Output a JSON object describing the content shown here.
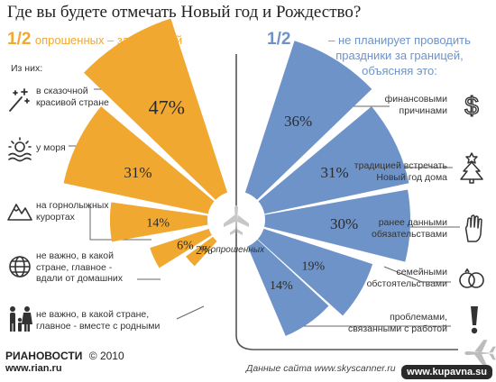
{
  "title": "Где вы будете отмечать Новый год и Рождество?",
  "left": {
    "fraction": "1/2",
    "caption": "опрошенных – за границей",
    "of_them": "Из них:"
  },
  "right": {
    "fraction": "1/2",
    "caption_lines": [
      "– не планирует проводить",
      "праздники за границей,",
      "объясняя это:"
    ]
  },
  "center_label": "% опрошенных",
  "chart_data": {
    "type": "bar",
    "orientation": "radial",
    "unit": "% опрошенных",
    "left_series": {
      "color": "#f0a830",
      "categories": [
        "в сказочной красивой стране",
        "у моря",
        "на горнолыжных курортах",
        "не важно, в какой стране, главное - вдали от домашних",
        "не важно, в какой стране, главное - вместе с родными"
      ],
      "values": [
        47,
        31,
        14,
        6,
        2
      ],
      "value_labels": [
        "47%",
        "31%",
        "14%",
        "6%",
        "2%"
      ]
    },
    "right_series": {
      "color": "#6e93c8",
      "categories": [
        "финансовыми причинами",
        "традицией встречать Новый год дома",
        "ранее данными обязательствами",
        "семейными обстоятельствами",
        "проблемами, связанными с работой"
      ],
      "values": [
        36,
        31,
        30,
        19,
        14
      ],
      "value_labels": [
        "36%",
        "31%",
        "30%",
        "19%",
        "14%"
      ]
    }
  },
  "left_labels": [
    [
      "в сказочной",
      "красивой стране"
    ],
    [
      "у моря"
    ],
    [
      "на горнолыжных",
      "курортах"
    ],
    [
      "не важно, в какой",
      "стране, главное -",
      "вдали от домашних"
    ],
    [
      "не важно, в какой стране,",
      "главное - вместе с родными"
    ]
  ],
  "right_labels": [
    [
      "финансовыми",
      "причинами"
    ],
    [
      "традицией встречать",
      "Новый год дома"
    ],
    [
      "ранее данными",
      "обязательствами"
    ],
    [
      "семейными",
      "обстоятельствами"
    ],
    [
      "проблемами,",
      "связанными с работой"
    ]
  ],
  "icons": {
    "left": [
      "magic-wand-icon",
      "sun-over-sea-icon",
      "mountains-icon",
      "globe-icon",
      "family-icon"
    ],
    "right": [
      "dollar-icon",
      "christmas-tree-icon",
      "raised-hand-icon",
      "rings-icon",
      "exclamation-icon"
    ],
    "center": "airplane-icon",
    "bottom": "airplane-landing-icon"
  },
  "footer": {
    "logo": "РИАНОВОСТИ",
    "year": "© 2010",
    "site": "www.rian.ru",
    "source": "Данные сайта www.skyscanner.ru",
    "watermark": "www.kupavna.su"
  },
  "colors": {
    "orange": "#f0a830",
    "blue": "#6e93c8",
    "line": "#555555"
  }
}
